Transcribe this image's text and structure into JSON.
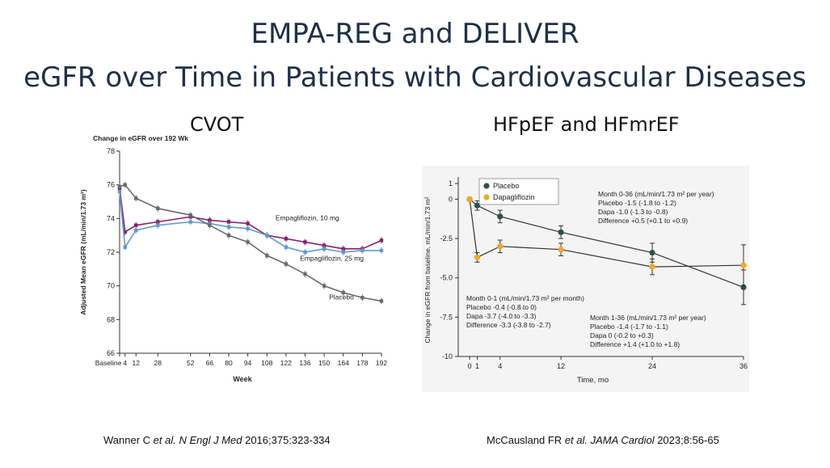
{
  "header": {
    "title_line1": "EMPA-REG and DELIVER",
    "title_line2": "eGFR over Time in Patients with Cardiovascular Diseases",
    "subtitle_left": "CVOT",
    "subtitle_right": "HFpEF and HFmrEF"
  },
  "citations": {
    "left_authors": "Wanner C ",
    "left_etal": "et al. N Engl J Med",
    "left_rest": " 2016;375:323-334",
    "right_authors": "McCausland FR ",
    "right_etal": "et al. JAMA Cardiol",
    "right_rest": " 2023;8:56-65"
  },
  "colors": {
    "title": "#1f3048",
    "placebo_left": "#6b6b6b",
    "empa10": "#8a1f6e",
    "empa25": "#5b9bd5",
    "placebo_right": "#2f4f4f",
    "dapa": "#f5a623"
  },
  "chart_data": [
    {
      "type": "line",
      "title": "Change in eGFR over 192 Wk",
      "xlabel": "Week",
      "ylabel": "Adjusted Mean eGFR (mL/min/1.73 m²)",
      "ylim": [
        66,
        78
      ],
      "yticks": [
        "78",
        "76",
        "74",
        "72",
        "70",
        "68",
        "66"
      ],
      "x_positions": [
        0,
        4,
        12,
        28,
        52,
        66,
        80,
        94,
        108,
        122,
        136,
        150,
        164,
        178,
        192
      ],
      "x_labels": [
        "Baseline",
        "4",
        "12",
        "28",
        "52",
        "66",
        "80",
        "94",
        "108",
        "122",
        "136",
        "150",
        "164",
        "178",
        "192"
      ],
      "series": [
        {
          "name": "Empagliflozin, 10 mg",
          "values": [
            75.8,
            73.2,
            73.6,
            73.8,
            74.1,
            73.9,
            73.8,
            73.7,
            73.0,
            72.8,
            72.6,
            72.4,
            72.2,
            72.2,
            72.7
          ]
        },
        {
          "name": "Empagliflozin, 25 mg",
          "values": [
            75.6,
            72.3,
            73.3,
            73.6,
            73.8,
            73.7,
            73.5,
            73.4,
            73.0,
            72.3,
            72.0,
            72.2,
            72.0,
            72.1,
            72.1
          ]
        },
        {
          "name": "Placebo",
          "values": [
            75.9,
            76.0,
            75.2,
            74.6,
            74.2,
            73.6,
            73.0,
            72.6,
            71.8,
            71.3,
            70.7,
            70.0,
            69.6,
            69.3,
            69.1
          ]
        }
      ],
      "annotations": [
        "Empagliflozin, 10 mg",
        "Empagliflozin, 25 mg",
        "Placebo"
      ]
    },
    {
      "type": "line",
      "xlabel": "Time, mo",
      "ylabel": "Change in eGFR from baseline, mL/min/1.73 m²",
      "ylim": [
        -10,
        1
      ],
      "yticks": [
        "1",
        "0",
        "-2.5",
        "-5.0",
        "-7.5",
        "-10"
      ],
      "x": [
        0,
        1,
        4,
        12,
        24,
        36
      ],
      "x_labels": [
        "0",
        "1",
        "4",
        "12",
        "24",
        "36"
      ],
      "series": [
        {
          "name": "Placebo",
          "values": [
            0,
            -0.4,
            -1.1,
            -2.1,
            -3.4,
            -5.6
          ]
        },
        {
          "name": "Dapagliflozin",
          "values": [
            0,
            -3.7,
            -3.0,
            -3.2,
            -4.3,
            -4.2
          ]
        }
      ],
      "legend": [
        "Placebo",
        "Dapagliflozin"
      ],
      "annot_top": {
        "heading": "Month 0-36 (mL/min/1.73 m² per year)",
        "l1": "Placebo -1.5 (-1.8 to -1.2)",
        "l2": "Dapa -1.0 (-1.3 to -0.8)",
        "l3": "Difference +0.5 (+0.1 to +0.9)"
      },
      "annot_left": {
        "heading": "Month 0-1 (mL/min/1.73 m² per month)",
        "l1": "Placebo -0.4 (-0.8 to 0)",
        "l2": "Dapa -3.7 (-4.0 to -3.3)",
        "l3": "Difference -3.3 (-3.8 to -2.7)"
      },
      "annot_right": {
        "heading": "Month 1-36 (mL/min/1.73 m² per year)",
        "l1": "Placebo -1.4 (-1.7 to -1.1)",
        "l2": "Dapa 0 (-0.2 to +0.3)",
        "l3": "Difference +1.4 (+1.0 to +1.8)"
      }
    }
  ]
}
